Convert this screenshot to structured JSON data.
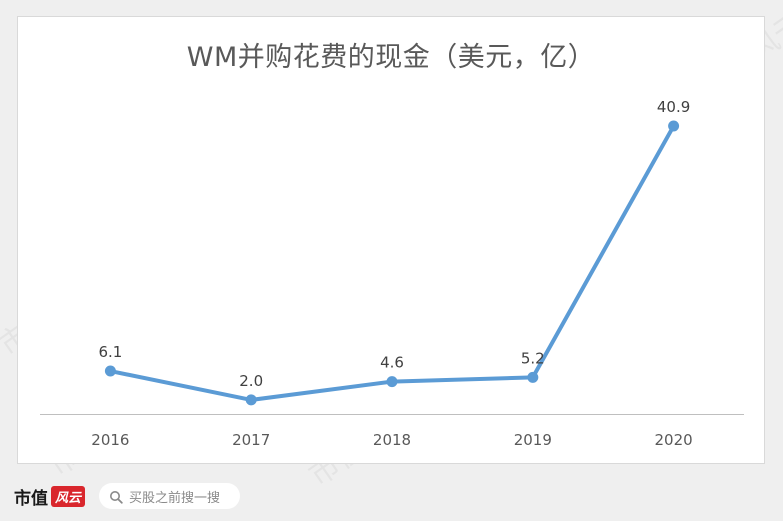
{
  "watermark_text": "市值风云",
  "footer": {
    "brand_text": "市值",
    "brand_mark": "风云",
    "search_placeholder": "买股之前搜一搜"
  },
  "colors": {
    "line": "#5b9bd5",
    "axis": "#bfbfbf",
    "text": "#595959",
    "brand_red": "#d9262c"
  },
  "chart_data": {
    "type": "line",
    "title": "WM并购花费的现金（美元，亿）",
    "categories": [
      "2016",
      "2017",
      "2018",
      "2019",
      "2020"
    ],
    "series": [
      {
        "values": [
          6.1,
          2.0,
          4.6,
          5.2,
          40.9
        ]
      }
    ],
    "data_labels": [
      "6.1",
      "2.0",
      "4.6",
      "5.2",
      "40.9"
    ],
    "grid": false,
    "legend": "none"
  }
}
